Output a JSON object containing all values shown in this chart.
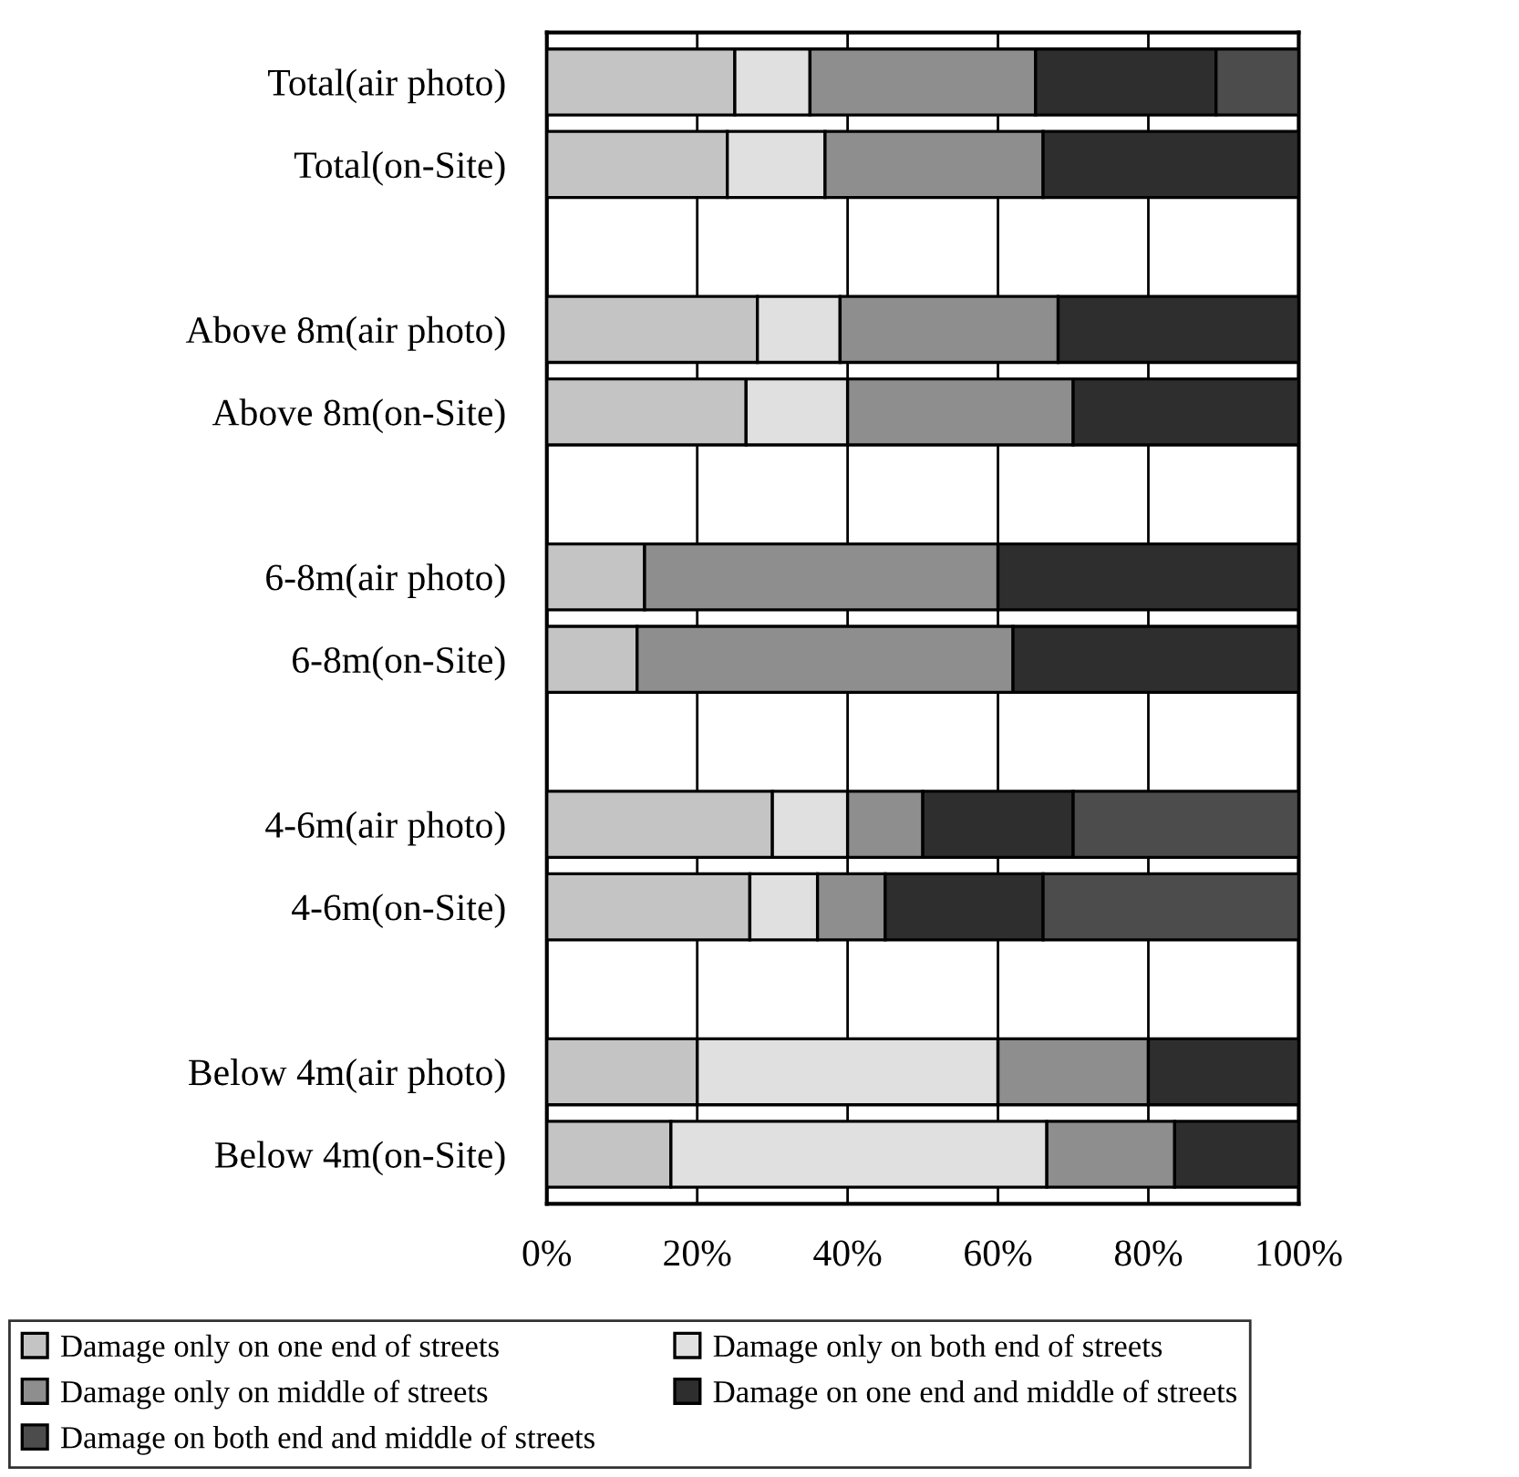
{
  "chart_data": {
    "type": "bar",
    "orientation": "horizontal",
    "stacked": true,
    "categories": [
      "Total(air photo)",
      "Total(on-Site)",
      null,
      "Above 8m(air photo)",
      "Above 8m(on-Site)",
      null,
      "6-8m(air photo)",
      "6-8m(on-Site)",
      null,
      "4-6m(air photo)",
      "4-6m(on-Site)",
      null,
      "Below 4m(air photo)",
      "Below 4m(on-Site)"
    ],
    "series": [
      {
        "name": "Damage only on one end of streets",
        "color": "#c4c4c4",
        "values": [
          25,
          24,
          null,
          28,
          26.5,
          null,
          13,
          12,
          null,
          30,
          27,
          null,
          20,
          16.5
        ]
      },
      {
        "name": "Damage only on both end of streets",
        "color": "#e0e0e0",
        "values": [
          10,
          13,
          null,
          11,
          13.5,
          null,
          null,
          null,
          null,
          10,
          9,
          null,
          40,
          50
        ]
      },
      {
        "name": "Damage only on middle of streets",
        "color": "#8e8e8e",
        "values": [
          30,
          29,
          null,
          29,
          30,
          null,
          47,
          50,
          null,
          10,
          9,
          null,
          20,
          17
        ]
      },
      {
        "name": "Damage on one end and middle of streets",
        "color": "#2e2e2e",
        "values": [
          24,
          34,
          null,
          32,
          30,
          null,
          40,
          38,
          null,
          20,
          21,
          null,
          20,
          16.5
        ]
      },
      {
        "name": "Damage on both end and middle of streets",
        "color": "#4c4c4c",
        "values": [
          11,
          null,
          null,
          null,
          null,
          null,
          null,
          null,
          null,
          30,
          34,
          null,
          null,
          null
        ]
      }
    ],
    "xlim": [
      0,
      100
    ],
    "xticks": [
      {
        "value": 0,
        "label": "0%"
      },
      {
        "value": 20,
        "label": "20%"
      },
      {
        "value": 40,
        "label": "40%"
      },
      {
        "value": 60,
        "label": "60%"
      },
      {
        "value": 80,
        "label": "80%"
      },
      {
        "value": 100,
        "label": "100%"
      }
    ],
    "grid": "x",
    "legend": "bottom"
  }
}
